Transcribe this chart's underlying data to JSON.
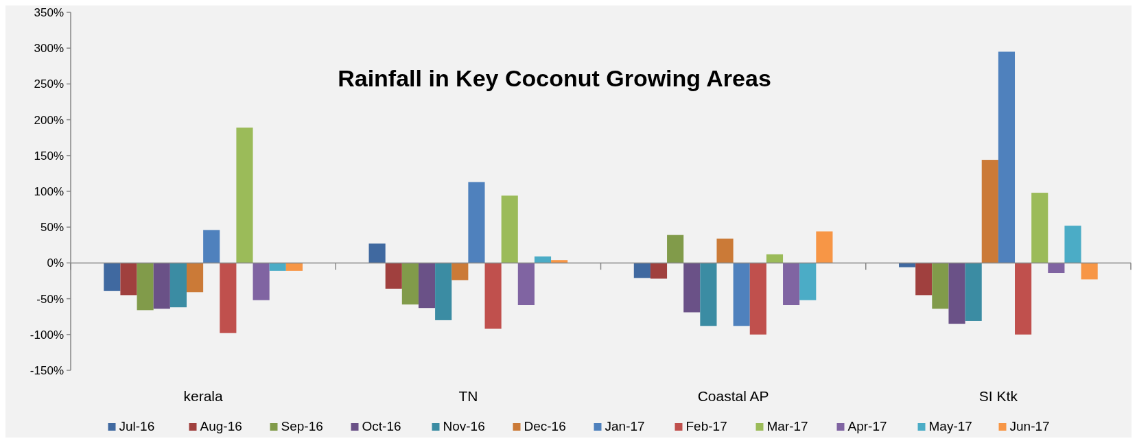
{
  "chart_data": {
    "type": "bar",
    "title": "Rainfall in Key Coconut Growing Areas",
    "categories": [
      "kerala",
      "TN",
      "Coastal AP",
      "SI Ktk"
    ],
    "series": [
      {
        "name": "Jul-16",
        "color": "#4069a0",
        "values": [
          -39,
          27,
          -21,
          -6
        ]
      },
      {
        "name": "Aug-16",
        "color": "#a0403e",
        "values": [
          -45,
          -36,
          -22,
          -45
        ]
      },
      {
        "name": "Sep-16",
        "color": "#819b4a",
        "values": [
          -66,
          -58,
          39,
          -64
        ]
      },
      {
        "name": "Oct-16",
        "color": "#6a5187",
        "values": [
          -64,
          -63,
          -69,
          -85
        ]
      },
      {
        "name": "Nov-16",
        "color": "#3b8ca3",
        "values": [
          -62,
          -80,
          -88,
          -81
        ]
      },
      {
        "name": "Dec-16",
        "color": "#cb7a37",
        "values": [
          -41,
          -24,
          34,
          144
        ]
      },
      {
        "name": "Jan-17",
        "color": "#4f81bd",
        "values": [
          46,
          113,
          -88,
          295
        ]
      },
      {
        "name": "Feb-17",
        "color": "#c0504d",
        "values": [
          -98,
          -92,
          -100,
          -100
        ]
      },
      {
        "name": "Mar-17",
        "color": "#9bbb59",
        "values": [
          189,
          94,
          12,
          98
        ]
      },
      {
        "name": "Apr-17",
        "color": "#8064a2",
        "values": [
          -52,
          -59,
          -59,
          -14
        ]
      },
      {
        "name": "May-17",
        "color": "#4bacc6",
        "values": [
          -11,
          9,
          -52,
          52
        ]
      },
      {
        "name": "Jun-17",
        "color": "#f79646",
        "values": [
          -11,
          4,
          44,
          -23
        ]
      }
    ],
    "ylim": [
      -150,
      350
    ],
    "yticks": [
      {
        "value": -150,
        "label": "-150%"
      },
      {
        "value": -100,
        "label": "-100%"
      },
      {
        "value": -50,
        "label": "-50%"
      },
      {
        "value": 0,
        "label": "0%"
      },
      {
        "value": 50,
        "label": "50%"
      },
      {
        "value": 100,
        "label": "100%"
      },
      {
        "value": 150,
        "label": "150%"
      },
      {
        "value": 200,
        "label": "200%"
      },
      {
        "value": 250,
        "label": "250%"
      },
      {
        "value": 300,
        "label": "300%"
      },
      {
        "value": 350,
        "label": "350%"
      }
    ],
    "legend": "bottom"
  }
}
